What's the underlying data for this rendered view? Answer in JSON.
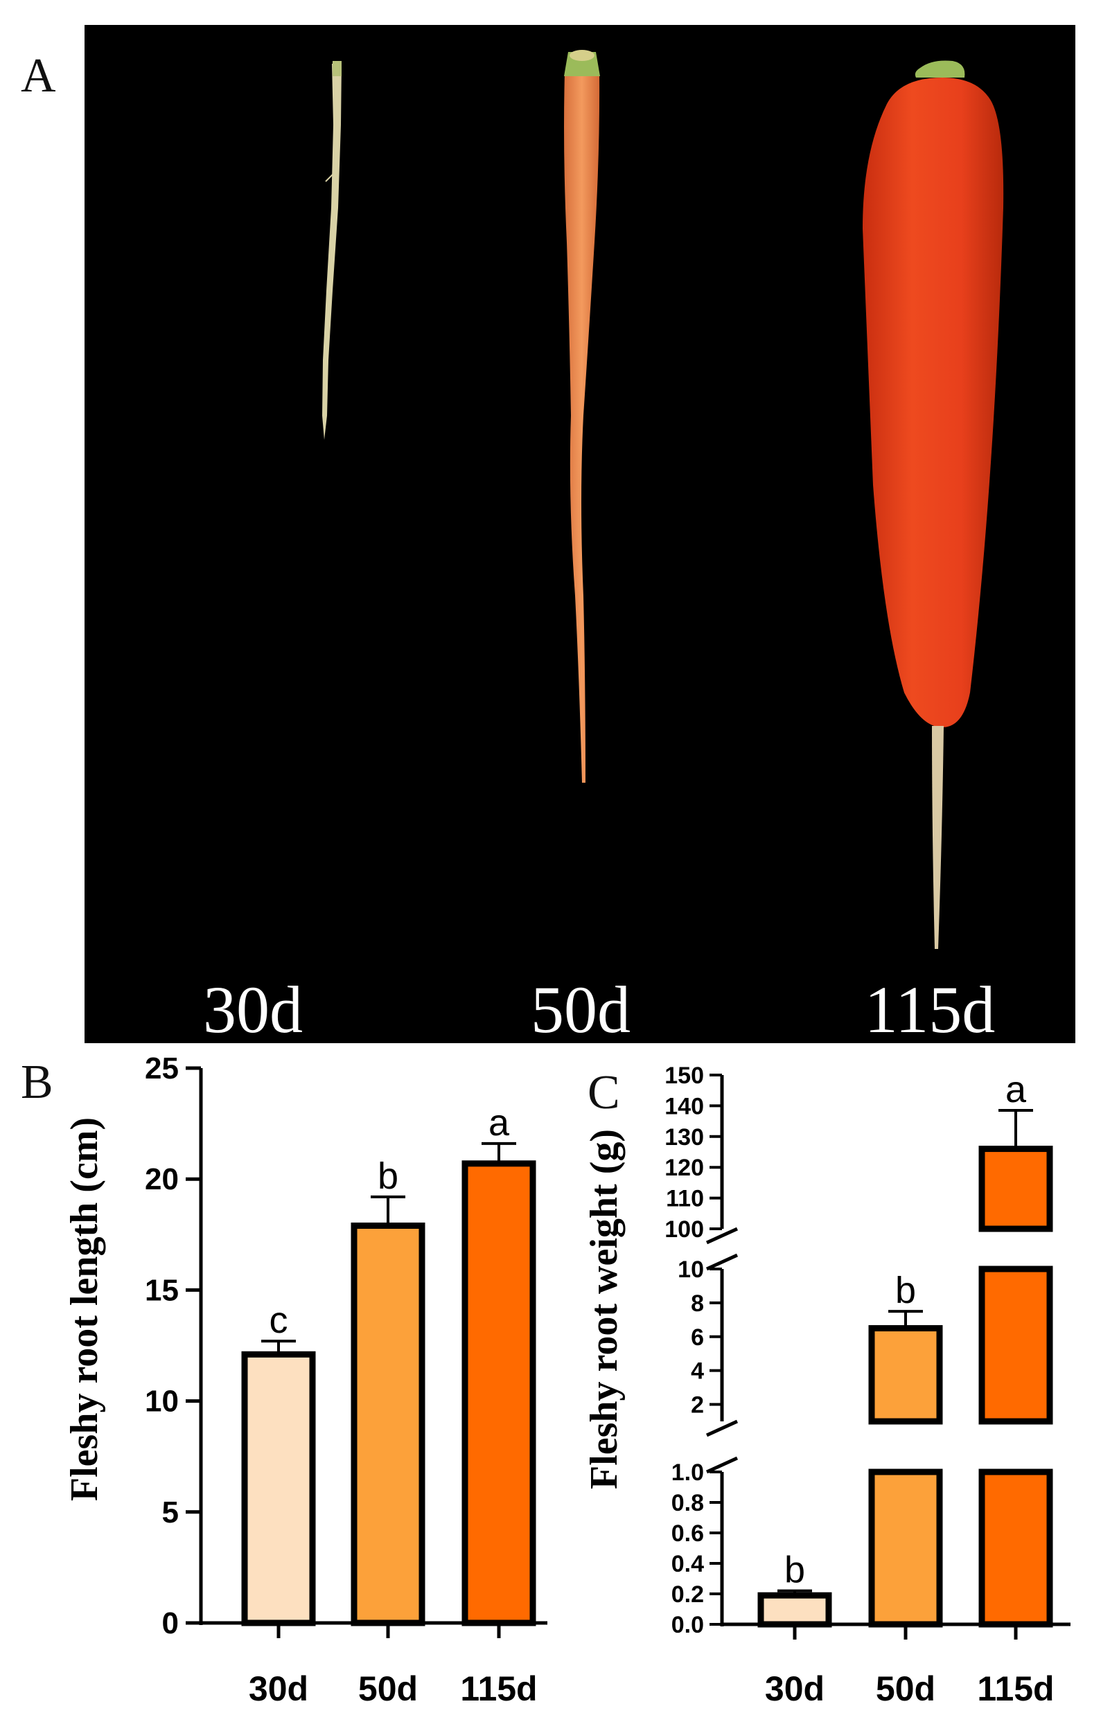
{
  "photo_panel": {
    "letter": "A",
    "labels": [
      "30d",
      "50d",
      "115d"
    ],
    "colors": {
      "background": "#000000",
      "young_root": "#d9d2a6",
      "mid_root": "#f0874c",
      "mature_root": "#e8401c",
      "crown": "#9bbb5a"
    }
  },
  "chart_data": [
    {
      "panel": "B",
      "type": "bar",
      "categories": [
        "30d",
        "50d",
        "115d"
      ],
      "values": [
        12.1,
        17.9,
        20.7
      ],
      "errors": [
        0.6,
        1.3,
        0.9
      ],
      "significance": [
        "c",
        "b",
        "a"
      ],
      "colors": [
        "#fde0c0",
        "#fca13a",
        "#ff6a00"
      ],
      "ylabel": "Fleshy root length (cm)",
      "ylim": [
        0,
        25
      ],
      "yticks": [
        "0",
        "5",
        "10",
        "15",
        "20",
        "25"
      ],
      "grid": false
    },
    {
      "panel": "C",
      "type": "bar",
      "categories": [
        "30d",
        "50d",
        "115d"
      ],
      "values": [
        0.19,
        6.5,
        126
      ],
      "errors": [
        0.03,
        1.0,
        12.5
      ],
      "significance": [
        "b",
        "b",
        "a"
      ],
      "colors": [
        "#fde0c0",
        "#fca13a",
        "#ff6a00"
      ],
      "ylabel": "Fleshy root weight (g)",
      "broken_axis": true,
      "segments": [
        {
          "range": [
            0,
            1.0
          ],
          "ticks": [
            "0.0",
            "0.2",
            "0.4",
            "0.6",
            "0.8",
            "1.0"
          ]
        },
        {
          "range": [
            1,
            10
          ],
          "ticks": [
            "2",
            "4",
            "6",
            "8",
            "10"
          ]
        },
        {
          "range": [
            100,
            150
          ],
          "ticks": [
            "100",
            "110",
            "120",
            "130",
            "140",
            "150"
          ]
        }
      ],
      "grid": false
    }
  ]
}
